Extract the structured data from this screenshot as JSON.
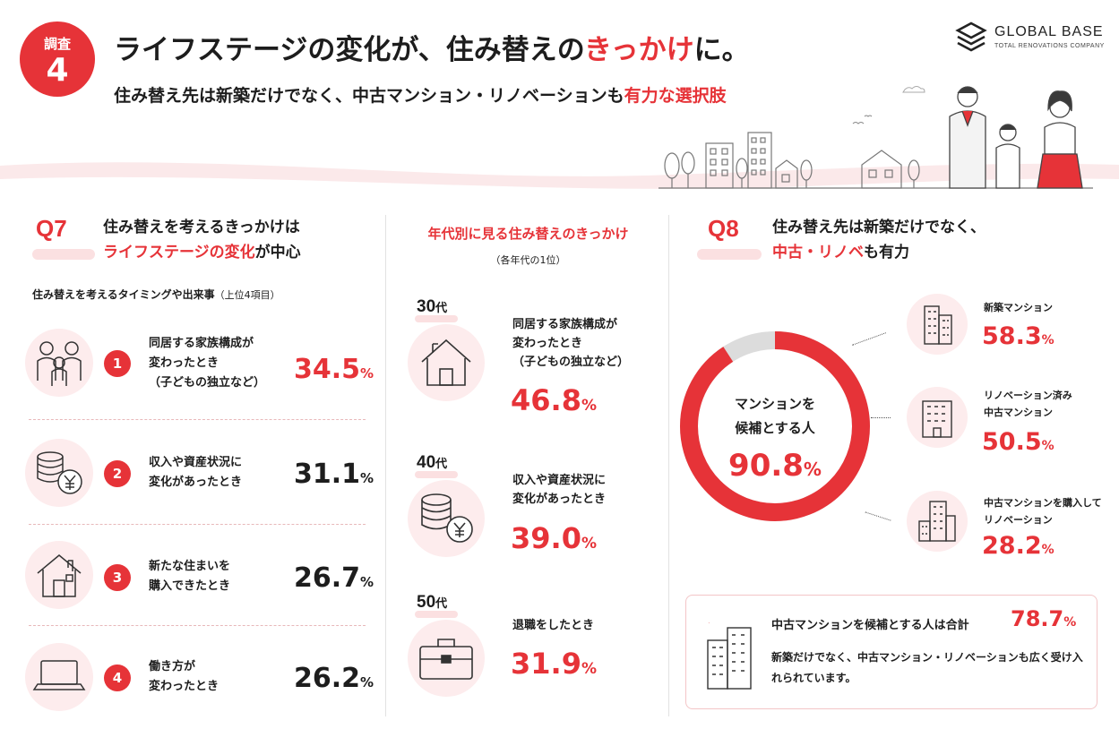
{
  "header": {
    "badge_line1": "調査",
    "badge_line2": "4",
    "title_part1": "ライフステージの変化が、住み替えの",
    "title_highlight": "きっかけ",
    "title_part2": "に。",
    "subtitle_part1": "住み替え先は新築だけでなく、中古マンション・リノベーションも",
    "subtitle_highlight": "有力な選択肢",
    "logo_name": "GLOBAL BASE",
    "logo_tagline": "TOTAL RENOVATIONS COMPANY"
  },
  "q7": {
    "label": "Q7",
    "title_line1": "住み替えを考えるきっかけは",
    "title_highlight": "ライフステージの変化",
    "title_line2_suffix": "が中心",
    "subhead": "住み替えを考えるタイミングや出来事",
    "subhead_note": "（上位4項目）",
    "items": [
      {
        "rank": "1",
        "line1": "同居する家族構成が",
        "line2": "変わったとき",
        "line3": "（子どもの独立など）",
        "value": "34.5",
        "unit": "%",
        "icon": "family-icon",
        "highlight": true
      },
      {
        "rank": "2",
        "line1": "収入や資産状況に",
        "line2": "変化があったとき",
        "line3": "",
        "value": "31.1",
        "unit": "%",
        "icon": "coins-yen-icon",
        "highlight": false
      },
      {
        "rank": "3",
        "line1": "新たな住まいを",
        "line2": "購入できたとき",
        "line3": "",
        "value": "26.7",
        "unit": "%",
        "icon": "house-icon",
        "highlight": false
      },
      {
        "rank": "4",
        "line1": "働き方が",
        "line2": "変わったとき",
        "line3": "",
        "value": "26.2",
        "unit": "%",
        "icon": "laptop-icon",
        "highlight": false
      }
    ]
  },
  "middle": {
    "title": "年代別に見る住み替えのきっかけ",
    "subtitle": "（各年代の1位）",
    "ages": [
      {
        "age": "30",
        "suffix": "代",
        "line1": "同居する家族構成が",
        "line2": "変わったとき",
        "line3": "（子どもの独立など）",
        "value": "46.8",
        "unit": "%",
        "icon": "house-icon"
      },
      {
        "age": "40",
        "suffix": "代",
        "line1": "収入や資産状況に",
        "line2": "変化があったとき",
        "line3": "",
        "value": "39.0",
        "unit": "%",
        "icon": "coins-yen-icon"
      },
      {
        "age": "50",
        "suffix": "代",
        "line1": "退職をしたとき",
        "line2": "",
        "line3": "",
        "value": "31.9",
        "unit": "%",
        "icon": "briefcase-icon"
      }
    ]
  },
  "q8": {
    "label": "Q8",
    "title_line1": "住み替え先は新築だけでなく、",
    "title_highlight": "中古・リノベ",
    "title_line2_suffix": "も有力",
    "donut_line1": "マンションを",
    "donut_line2": "候補とする人",
    "donut_value": "90.8",
    "donut_unit": "%",
    "items": [
      {
        "line1": "新築マンション",
        "line2": "",
        "value": "58.3",
        "unit": "%",
        "icon": "building-icon"
      },
      {
        "line1": "リノベーション済み",
        "line2": "中古マンション",
        "value": "50.5",
        "unit": "%",
        "icon": "apartment-icon"
      },
      {
        "line1": "中古マンションを購入して",
        "line2": "リノベーション",
        "value": "28.2",
        "unit": "%",
        "icon": "tower-icon"
      }
    ],
    "summary_line1": "中古マンションを候補とする人は合計",
    "summary_value": "78.7",
    "summary_unit": "%",
    "summary_line2": "新築だけでなく、中古マンション・リノベーションも広く受け入れられています。"
  },
  "colors": {
    "accent": "#e63338",
    "pink": "#fdeced",
    "text": "#1d1d1d"
  },
  "chart_data": [
    {
      "type": "bar",
      "title": "住み替えを考えるタイミングや出来事（上位4項目）",
      "categories": [
        "同居する家族構成が変わったとき（子どもの独立など）",
        "収入や資産状況に変化があったとき",
        "新たな住まいを購入できたとき",
        "働き方が変わったとき"
      ],
      "values": [
        34.5,
        31.1,
        26.7,
        26.2
      ]
    },
    {
      "type": "table",
      "title": "年代別に見る住み替えのきっかけ",
      "categories": [
        "30代",
        "40代",
        "50代"
      ],
      "labels": [
        "同居する家族構成が変わったとき（子どもの独立など）",
        "収入や資産状況に変化があったとき",
        "退職をしたとき"
      ],
      "values": [
        46.8,
        39.0,
        31.9
      ]
    },
    {
      "type": "pie",
      "title": "マンションを候補とする人",
      "categories": [
        "マンションを候補とする人",
        ""
      ],
      "values": [
        90.8,
        9.2
      ]
    },
    {
      "type": "bar",
      "title": "住み替え先",
      "categories": [
        "新築マンション",
        "リノベーション済み中古マンション",
        "中古マンションを購入してリノベーション"
      ],
      "values": [
        58.3,
        50.5,
        28.2
      ]
    }
  ]
}
